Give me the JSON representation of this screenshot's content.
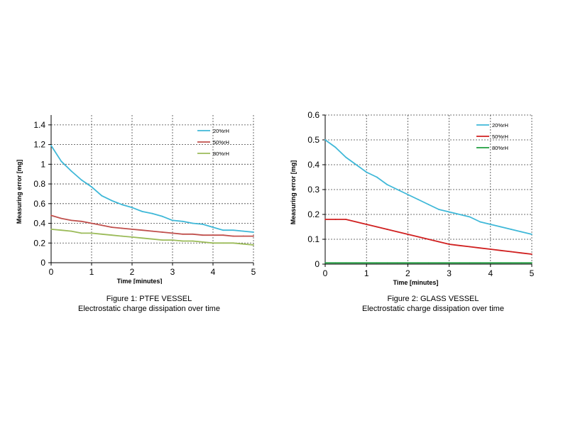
{
  "chart_data": [
    {
      "type": "line",
      "xlabel": "Time [minutes]",
      "ylabel": "Measuring error [mg]",
      "xlim": [
        0,
        5
      ],
      "ylim": [
        0,
        1.5
      ],
      "xticks": [
        0,
        1,
        2,
        3,
        4,
        5
      ],
      "yticks": [
        0,
        0.2,
        0.4,
        0.6,
        0.8,
        1,
        1.2,
        1.4
      ],
      "ytick_labels": [
        "0",
        "0.2",
        "0.4",
        "0.6",
        "0.8",
        "1",
        "1.2",
        "1.4"
      ],
      "grid": true,
      "legend_position": "top-right",
      "x": [
        0,
        0.25,
        0.5,
        0.75,
        1,
        1.25,
        1.5,
        1.75,
        2,
        2.25,
        2.5,
        2.75,
        3,
        3.25,
        3.5,
        3.75,
        4,
        4.25,
        4.5,
        4.75,
        5
      ],
      "series": [
        {
          "name": "20%rH",
          "color": "#3fb8d8",
          "values": [
            1.19,
            1.03,
            0.93,
            0.84,
            0.77,
            0.68,
            0.63,
            0.59,
            0.56,
            0.52,
            0.5,
            0.47,
            0.43,
            0.42,
            0.4,
            0.39,
            0.36,
            0.33,
            0.33,
            0.32,
            0.31
          ]
        },
        {
          "name": "50%rH",
          "color": "#c0504d",
          "values": [
            0.48,
            0.45,
            0.43,
            0.42,
            0.4,
            0.38,
            0.36,
            0.35,
            0.34,
            0.33,
            0.32,
            0.31,
            0.3,
            0.29,
            0.29,
            0.28,
            0.28,
            0.28,
            0.27,
            0.27,
            0.27
          ]
        },
        {
          "name": "80%rH",
          "color": "#9bbb59",
          "values": [
            0.34,
            0.33,
            0.32,
            0.3,
            0.3,
            0.29,
            0.28,
            0.27,
            0.26,
            0.25,
            0.24,
            0.23,
            0.23,
            0.22,
            0.22,
            0.21,
            0.2,
            0.2,
            0.2,
            0.19,
            0.18
          ]
        }
      ]
    },
    {
      "type": "line",
      "xlabel": "Time [minutes]",
      "ylabel": "Measuring error [mg]",
      "xlim": [
        0,
        5
      ],
      "ylim": [
        0,
        0.6
      ],
      "xticks": [
        0,
        1,
        2,
        3,
        4,
        5
      ],
      "yticks": [
        0,
        0.1,
        0.2,
        0.3,
        0.4,
        0.5,
        0.6
      ],
      "ytick_labels": [
        "0",
        "0.1",
        "0.2",
        "0.3",
        "0.4",
        "0.5",
        "0.6"
      ],
      "grid": true,
      "legend_position": "top-right",
      "x": [
        0,
        0.25,
        0.5,
        0.75,
        1,
        1.25,
        1.5,
        1.75,
        2,
        2.25,
        2.5,
        2.75,
        3,
        3.25,
        3.5,
        3.75,
        4,
        4.25,
        4.5,
        4.75,
        5
      ],
      "series": [
        {
          "name": "20%rH",
          "color": "#3fb8d8",
          "values": [
            0.5,
            0.47,
            0.43,
            0.4,
            0.37,
            0.35,
            0.32,
            0.3,
            0.28,
            0.26,
            0.24,
            0.22,
            0.21,
            0.2,
            0.19,
            0.17,
            0.16,
            0.15,
            0.14,
            0.13,
            0.12
          ]
        },
        {
          "name": "50%rH",
          "color": "#d02020",
          "values": [
            0.18,
            0.18,
            0.18,
            0.17,
            0.16,
            0.15,
            0.14,
            0.13,
            0.12,
            0.11,
            0.1,
            0.09,
            0.08,
            0.075,
            0.07,
            0.065,
            0.06,
            0.055,
            0.05,
            0.045,
            0.04
          ]
        },
        {
          "name": "80%rH",
          "color": "#1e9e3e",
          "values": [
            0.005,
            0.005,
            0.005,
            0.005,
            0.005,
            0.005,
            0.005,
            0.005,
            0.005,
            0.005,
            0.005,
            0.005,
            0.005,
            0.005,
            0.005,
            0.005,
            0.005,
            0.005,
            0.005,
            0.005,
            0.005
          ]
        }
      ]
    }
  ],
  "captions": [
    {
      "line1": "Figure 1: PTFE VESSEL",
      "line2": "Electrostatic charge dissipation over time"
    },
    {
      "line1": "Figure 2: GLASS VESSEL",
      "line2": "Electrostatic charge dissipation over time"
    }
  ]
}
